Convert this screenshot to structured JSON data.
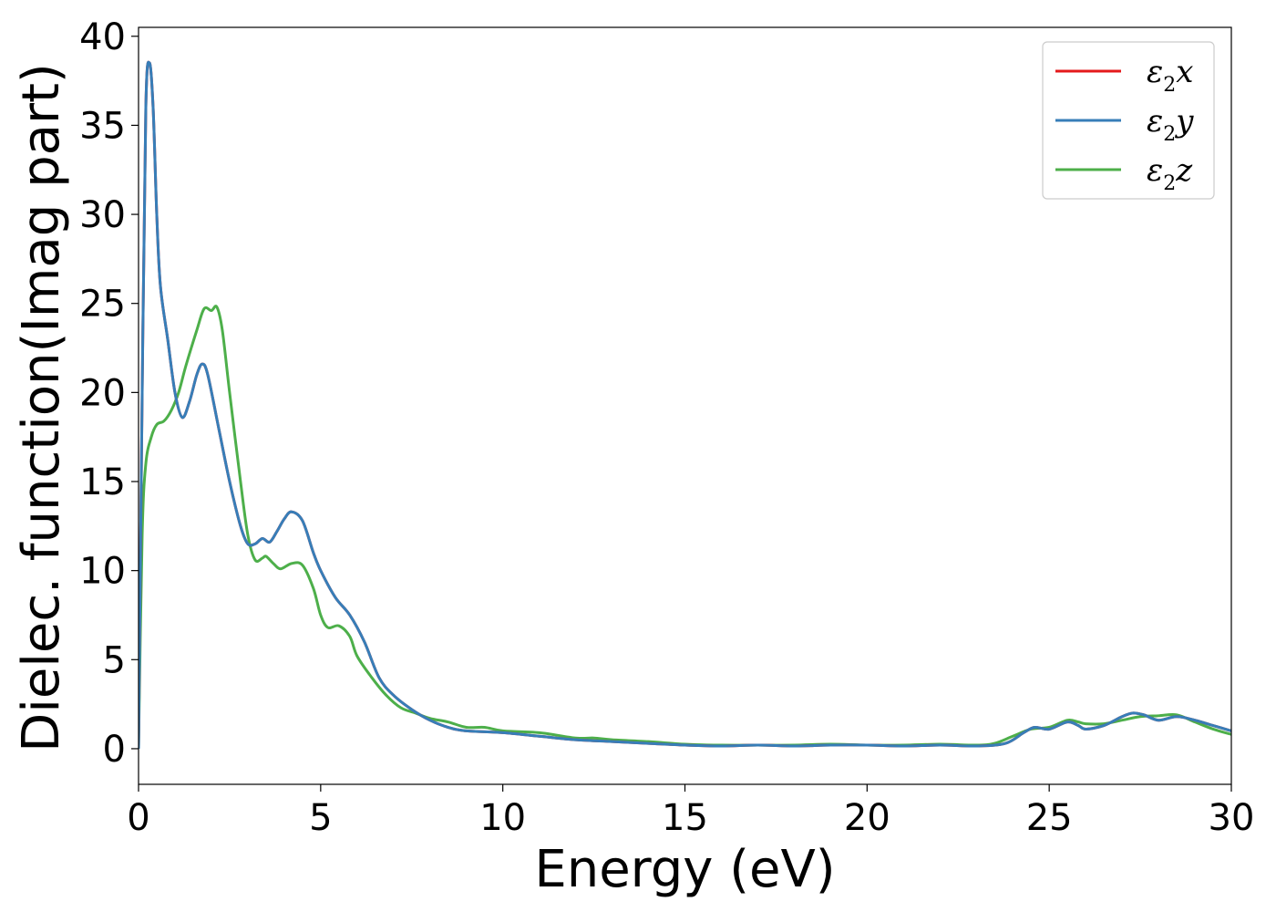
{
  "chart_data": {
    "type": "line",
    "xlabel": "Energy (eV)",
    "ylabel": "Dielec. function(Imag part)",
    "xlim": [
      0,
      30
    ],
    "ylim": [
      -2,
      40.5
    ],
    "xticks": [
      "0",
      "5",
      "10",
      "15",
      "20",
      "25",
      "30"
    ],
    "yticks": [
      "0",
      "5",
      "10",
      "15",
      "20",
      "25",
      "30",
      "35",
      "40"
    ],
    "grid": false,
    "legend_position": "top-right",
    "series": [
      {
        "name": "ε2x",
        "legend_base": "ε",
        "legend_sub": "2",
        "legend_tail": "x",
        "color": "#e41a1c",
        "points": [
          [
            0,
            0
          ],
          [
            0.1,
            20
          ],
          [
            0.2,
            36
          ],
          [
            0.3,
            38.5
          ],
          [
            0.4,
            36
          ],
          [
            0.5,
            30
          ],
          [
            0.6,
            26
          ],
          [
            0.8,
            23
          ],
          [
            1.0,
            20
          ],
          [
            1.2,
            18.6
          ],
          [
            1.4,
            19.5
          ],
          [
            1.6,
            21
          ],
          [
            1.75,
            21.6
          ],
          [
            1.9,
            21
          ],
          [
            2.2,
            18
          ],
          [
            2.5,
            15
          ],
          [
            2.8,
            12.5
          ],
          [
            3.0,
            11.5
          ],
          [
            3.2,
            11.5
          ],
          [
            3.4,
            11.8
          ],
          [
            3.6,
            11.6
          ],
          [
            3.8,
            12.2
          ],
          [
            4.0,
            12.9
          ],
          [
            4.2,
            13.3
          ],
          [
            4.5,
            12.8
          ],
          [
            4.8,
            11
          ],
          [
            5.0,
            10
          ],
          [
            5.4,
            8.5
          ],
          [
            5.8,
            7.5
          ],
          [
            6.2,
            6
          ],
          [
            6.6,
            4
          ],
          [
            7.0,
            3
          ],
          [
            7.5,
            2.2
          ],
          [
            8.0,
            1.6
          ],
          [
            8.5,
            1.2
          ],
          [
            9.0,
            1.0
          ],
          [
            10,
            0.9
          ],
          [
            11,
            0.7
          ],
          [
            12,
            0.5
          ],
          [
            13,
            0.4
          ],
          [
            14,
            0.3
          ],
          [
            15,
            0.2
          ],
          [
            16,
            0.15
          ],
          [
            17,
            0.2
          ],
          [
            18,
            0.15
          ],
          [
            19,
            0.2
          ],
          [
            20,
            0.2
          ],
          [
            21,
            0.15
          ],
          [
            22,
            0.2
          ],
          [
            23,
            0.15
          ],
          [
            23.8,
            0.3
          ],
          [
            24.3,
            0.9
          ],
          [
            24.6,
            1.2
          ],
          [
            25.0,
            1.1
          ],
          [
            25.5,
            1.5
          ],
          [
            25.8,
            1.3
          ],
          [
            26.0,
            1.1
          ],
          [
            26.5,
            1.3
          ],
          [
            27.0,
            1.8
          ],
          [
            27.3,
            2.0
          ],
          [
            27.6,
            1.9
          ],
          [
            28.0,
            1.6
          ],
          [
            28.5,
            1.8
          ],
          [
            29.0,
            1.6
          ],
          [
            29.5,
            1.3
          ],
          [
            30,
            1.0
          ]
        ]
      },
      {
        "name": "ε2y",
        "legend_base": "ε",
        "legend_sub": "2",
        "legend_tail": "y",
        "color": "#377eb8",
        "points": [
          [
            0,
            0
          ],
          [
            0.1,
            20
          ],
          [
            0.2,
            36
          ],
          [
            0.3,
            38.5
          ],
          [
            0.4,
            36
          ],
          [
            0.5,
            30
          ],
          [
            0.6,
            26
          ],
          [
            0.8,
            23
          ],
          [
            1.0,
            20
          ],
          [
            1.2,
            18.6
          ],
          [
            1.4,
            19.5
          ],
          [
            1.6,
            21
          ],
          [
            1.75,
            21.6
          ],
          [
            1.9,
            21
          ],
          [
            2.2,
            18
          ],
          [
            2.5,
            15
          ],
          [
            2.8,
            12.5
          ],
          [
            3.0,
            11.5
          ],
          [
            3.2,
            11.5
          ],
          [
            3.4,
            11.8
          ],
          [
            3.6,
            11.6
          ],
          [
            3.8,
            12.2
          ],
          [
            4.0,
            12.9
          ],
          [
            4.2,
            13.3
          ],
          [
            4.5,
            12.8
          ],
          [
            4.8,
            11
          ],
          [
            5.0,
            10
          ],
          [
            5.4,
            8.5
          ],
          [
            5.8,
            7.5
          ],
          [
            6.2,
            6
          ],
          [
            6.6,
            4
          ],
          [
            7.0,
            3
          ],
          [
            7.5,
            2.2
          ],
          [
            8.0,
            1.6
          ],
          [
            8.5,
            1.2
          ],
          [
            9.0,
            1.0
          ],
          [
            10,
            0.9
          ],
          [
            11,
            0.7
          ],
          [
            12,
            0.5
          ],
          [
            13,
            0.4
          ],
          [
            14,
            0.3
          ],
          [
            15,
            0.2
          ],
          [
            16,
            0.15
          ],
          [
            17,
            0.2
          ],
          [
            18,
            0.15
          ],
          [
            19,
            0.2
          ],
          [
            20,
            0.2
          ],
          [
            21,
            0.15
          ],
          [
            22,
            0.2
          ],
          [
            23,
            0.15
          ],
          [
            23.8,
            0.3
          ],
          [
            24.3,
            0.9
          ],
          [
            24.6,
            1.2
          ],
          [
            25.0,
            1.1
          ],
          [
            25.5,
            1.5
          ],
          [
            25.8,
            1.3
          ],
          [
            26.0,
            1.1
          ],
          [
            26.5,
            1.3
          ],
          [
            27.0,
            1.8
          ],
          [
            27.3,
            2.0
          ],
          [
            27.6,
            1.9
          ],
          [
            28.0,
            1.6
          ],
          [
            28.5,
            1.8
          ],
          [
            29.0,
            1.6
          ],
          [
            29.5,
            1.3
          ],
          [
            30,
            1.0
          ]
        ]
      },
      {
        "name": "ε2z",
        "legend_base": "ε",
        "legend_sub": "2",
        "legend_tail": "z",
        "color": "#4daf4a",
        "points": [
          [
            0,
            0
          ],
          [
            0.1,
            12
          ],
          [
            0.2,
            16
          ],
          [
            0.35,
            17.5
          ],
          [
            0.5,
            18.2
          ],
          [
            0.7,
            18.4
          ],
          [
            0.9,
            19
          ],
          [
            1.1,
            20
          ],
          [
            1.3,
            21.5
          ],
          [
            1.6,
            23.5
          ],
          [
            1.8,
            24.7
          ],
          [
            2.0,
            24.6
          ],
          [
            2.15,
            24.8
          ],
          [
            2.3,
            23.5
          ],
          [
            2.5,
            20
          ],
          [
            2.8,
            15
          ],
          [
            3.0,
            12
          ],
          [
            3.2,
            10.6
          ],
          [
            3.4,
            10.7
          ],
          [
            3.5,
            10.8
          ],
          [
            3.7,
            10.4
          ],
          [
            3.9,
            10.1
          ],
          [
            4.2,
            10.4
          ],
          [
            4.5,
            10.3
          ],
          [
            4.8,
            9
          ],
          [
            5.0,
            7.5
          ],
          [
            5.2,
            6.8
          ],
          [
            5.5,
            6.9
          ],
          [
            5.8,
            6.3
          ],
          [
            6.0,
            5.2
          ],
          [
            6.4,
            4.0
          ],
          [
            6.8,
            3.0
          ],
          [
            7.2,
            2.3
          ],
          [
            7.6,
            2.0
          ],
          [
            8.0,
            1.7
          ],
          [
            8.5,
            1.5
          ],
          [
            9.0,
            1.2
          ],
          [
            9.5,
            1.2
          ],
          [
            10,
            1.0
          ],
          [
            11,
            0.9
          ],
          [
            12,
            0.6
          ],
          [
            12.5,
            0.6
          ],
          [
            13,
            0.5
          ],
          [
            14,
            0.4
          ],
          [
            15,
            0.25
          ],
          [
            16,
            0.2
          ],
          [
            17,
            0.2
          ],
          [
            18,
            0.2
          ],
          [
            19,
            0.25
          ],
          [
            20,
            0.2
          ],
          [
            21,
            0.2
          ],
          [
            22,
            0.25
          ],
          [
            23,
            0.2
          ],
          [
            23.5,
            0.3
          ],
          [
            24.0,
            0.7
          ],
          [
            24.5,
            1.1
          ],
          [
            25.0,
            1.2
          ],
          [
            25.5,
            1.6
          ],
          [
            25.8,
            1.5
          ],
          [
            26.0,
            1.4
          ],
          [
            26.5,
            1.4
          ],
          [
            27.0,
            1.6
          ],
          [
            27.5,
            1.8
          ],
          [
            28.0,
            1.85
          ],
          [
            28.5,
            1.9
          ],
          [
            29.0,
            1.5
          ],
          [
            29.5,
            1.1
          ],
          [
            30,
            0.8
          ]
        ]
      }
    ]
  }
}
